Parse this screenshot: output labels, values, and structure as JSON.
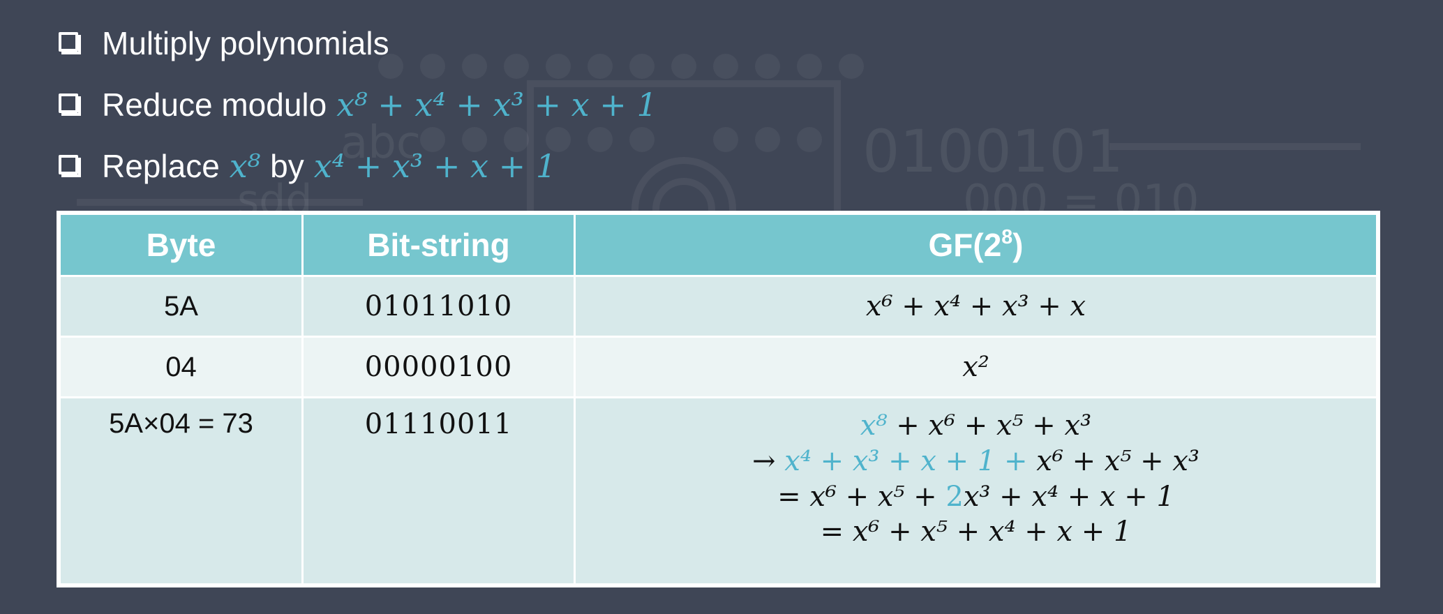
{
  "bullets": [
    {
      "label": "Multiply polynomials"
    },
    {
      "label": "Reduce modulo",
      "math": "x⁸ + x⁴ + x³ + x + 1"
    },
    {
      "label_pre": "Replace",
      "math1": "x⁸",
      "label_mid": "by",
      "math2": "x⁴ + x³ + x + 1"
    }
  ],
  "background_text": {
    "a": "0100101",
    "b": "abc",
    "c": "sdd",
    "d": "000 = 010"
  },
  "table": {
    "headers": {
      "byte": "Byte",
      "bitstring": "Bit-string",
      "gf_base": "GF(2",
      "gf_exp": "8",
      "gf_close": ")"
    },
    "rows": [
      {
        "byte": "5A",
        "bits": "01011010",
        "poly": "x⁶ + x⁴ + x³ + x"
      },
      {
        "byte": "04",
        "bits": "00000100",
        "poly": "x²"
      },
      {
        "byte": "5A×04 = 73",
        "bits": "01110011",
        "lines": {
          "l1_blue": "x⁸",
          "l1_rest": " + x⁶ + x⁵ + x³",
          "l2_arrow": "→ ",
          "l2_blue": "x⁴ + x³ + x + 1 + ",
          "l2_rest": "x⁶ + x⁵ + x³",
          "l3_pre": "= x⁶ + x⁵ + ",
          "l3_blue": "2",
          "l3_rest": "x³ + x⁴ + x + 1",
          "l4": "= x⁶ + x⁵ + x⁴ + x + 1"
        }
      }
    ]
  },
  "colors": {
    "background": "#3f4656",
    "header": "#76c6ce",
    "accent": "#4fb3cc",
    "row_light": "#ecf4f4",
    "row_dark": "#d7e9ea"
  }
}
